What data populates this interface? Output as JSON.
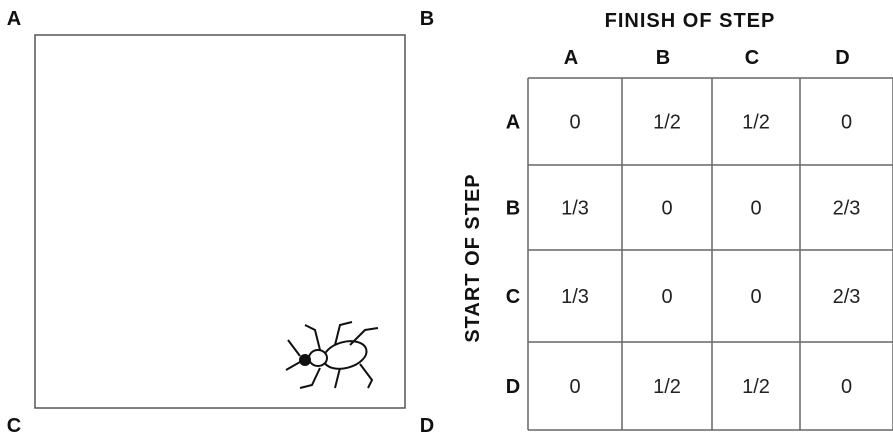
{
  "corners": {
    "top_left": "A",
    "top_right": "B",
    "bottom_left": "C",
    "bottom_right": "D"
  },
  "table": {
    "column_title": "FINISH OF STEP",
    "row_title": "START OF STEP",
    "columns": [
      "A",
      "B",
      "C",
      "D"
    ],
    "rows": [
      {
        "label": "A",
        "cells": [
          "0",
          "1/2",
          "1/2",
          "0"
        ]
      },
      {
        "label": "B",
        "cells": [
          "1/3",
          "0",
          "0",
          "2/3"
        ]
      },
      {
        "label": "C",
        "cells": [
          "1/3",
          "0",
          "0",
          "2/3"
        ]
      },
      {
        "label": "D",
        "cells": [
          "0",
          "1/2",
          "1/2",
          "0"
        ]
      }
    ]
  }
}
